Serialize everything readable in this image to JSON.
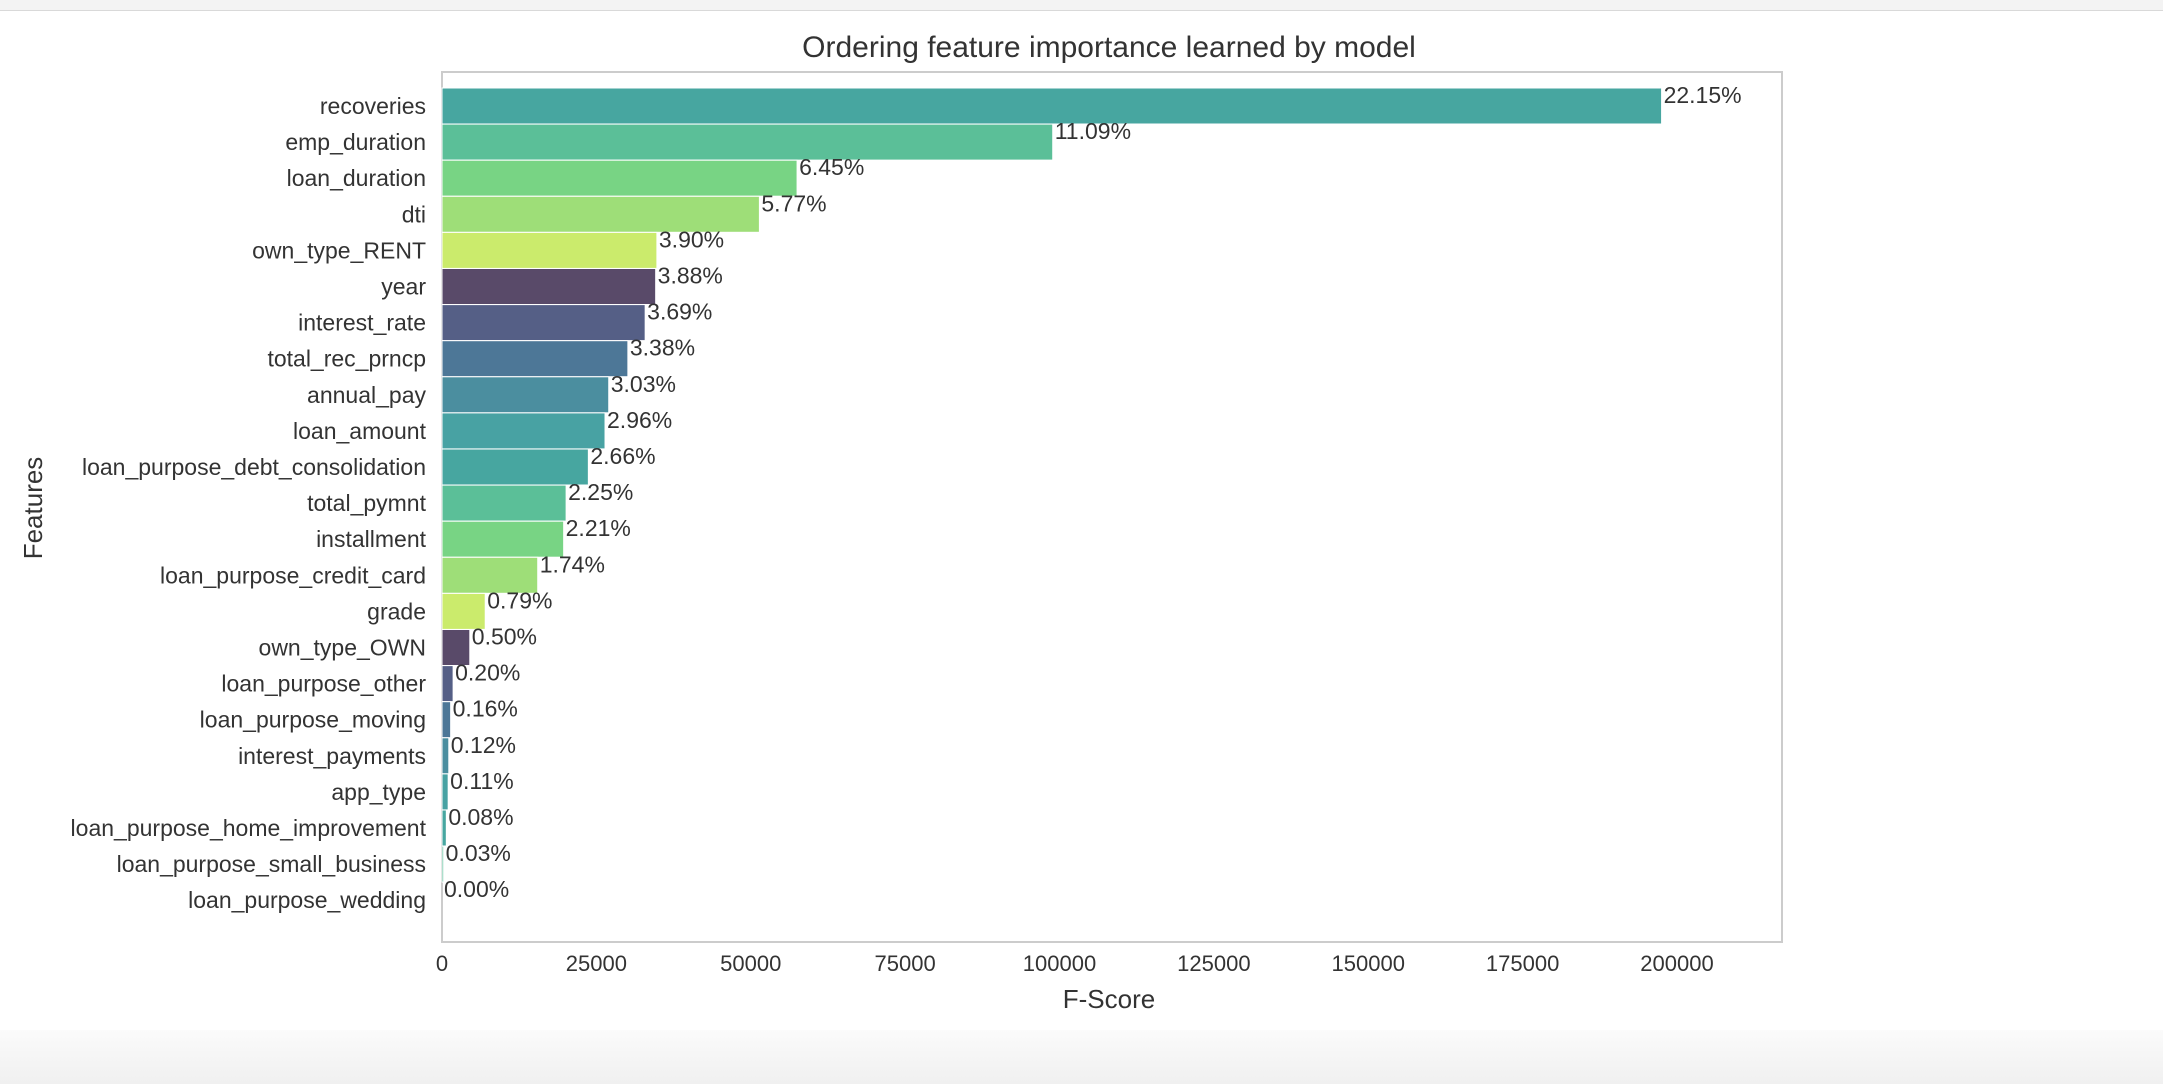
{
  "chart_data": {
    "type": "bar",
    "orientation": "horizontal",
    "title": "Ordering feature importance learned by model",
    "xlabel": "F-Score",
    "ylabel": "Features",
    "xlim": [
      0,
      217000
    ],
    "xticks": [
      0,
      25000,
      50000,
      75000,
      100000,
      125000,
      150000,
      175000,
      200000
    ],
    "xtick_labels": [
      "0",
      "25000",
      "50000",
      "75000",
      "100000",
      "125000",
      "150000",
      "175000",
      "200000"
    ],
    "grid": false,
    "palette": [
      "#47a6a0",
      "#5bbf98",
      "#78d484",
      "#9ede78",
      "#cbeb6c",
      "#594a69",
      "#555f86",
      "#4d7797",
      "#4b8e9f",
      "#48a2a3"
    ],
    "bars": [
      {
        "feature": "recoveries",
        "value": 197500,
        "label": "22.15%"
      },
      {
        "feature": "emp_duration",
        "value": 98900,
        "label": "11.09%"
      },
      {
        "feature": "loan_duration",
        "value": 57500,
        "label": "6.45%"
      },
      {
        "feature": "dti",
        "value": 51400,
        "label": "5.77%"
      },
      {
        "feature": "own_type_RENT",
        "value": 34800,
        "label": "3.90%"
      },
      {
        "feature": "year",
        "value": 34600,
        "label": "3.88%"
      },
      {
        "feature": "interest_rate",
        "value": 32900,
        "label": "3.69%"
      },
      {
        "feature": "total_rec_prncp",
        "value": 30100,
        "label": "3.38%"
      },
      {
        "feature": "annual_pay",
        "value": 27000,
        "label": "3.03%"
      },
      {
        "feature": "loan_amount",
        "value": 26400,
        "label": "2.96%"
      },
      {
        "feature": "loan_purpose_debt_consolidation",
        "value": 23700,
        "label": "2.66%"
      },
      {
        "feature": "total_pymnt",
        "value": 20100,
        "label": "2.25%"
      },
      {
        "feature": "installment",
        "value": 19700,
        "label": "2.21%"
      },
      {
        "feature": "loan_purpose_credit_card",
        "value": 15500,
        "label": "1.74%"
      },
      {
        "feature": "grade",
        "value": 7000,
        "label": "0.79%"
      },
      {
        "feature": "own_type_OWN",
        "value": 4500,
        "label": "0.50%"
      },
      {
        "feature": "loan_purpose_other",
        "value": 1800,
        "label": "0.20%"
      },
      {
        "feature": "loan_purpose_moving",
        "value": 1400,
        "label": "0.16%"
      },
      {
        "feature": "interest_payments",
        "value": 1100,
        "label": "0.12%"
      },
      {
        "feature": "app_type",
        "value": 1000,
        "label": "0.11%"
      },
      {
        "feature": "loan_purpose_home_improvement",
        "value": 700,
        "label": "0.08%"
      },
      {
        "feature": "loan_purpose_small_business",
        "value": 270,
        "label": "0.03%"
      },
      {
        "feature": "loan_purpose_wedding",
        "value": 0,
        "label": "0.00%"
      }
    ]
  }
}
